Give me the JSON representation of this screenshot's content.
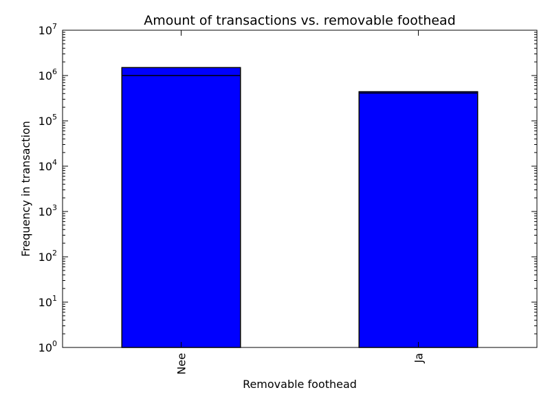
{
  "chart_data": {
    "type": "bar",
    "title": "Amount of transactions vs. removable foothead",
    "xlabel": "Removable foothead",
    "ylabel": "Frequency in transaction",
    "yscale": "log",
    "ylim": [
      1,
      10000000
    ],
    "yticks": [
      {
        "base": "10",
        "exp": "0",
        "value": 1
      },
      {
        "base": "10",
        "exp": "1",
        "value": 10
      },
      {
        "base": "10",
        "exp": "2",
        "value": 100
      },
      {
        "base": "10",
        "exp": "3",
        "value": 1000
      },
      {
        "base": "10",
        "exp": "4",
        "value": 10000
      },
      {
        "base": "10",
        "exp": "5",
        "value": 100000
      },
      {
        "base": "10",
        "exp": "6",
        "value": 1000000
      },
      {
        "base": "10",
        "exp": "7",
        "value": 10000000
      }
    ],
    "categories": [
      "Nee",
      "Ja"
    ],
    "values": [
      1500000,
      440000
    ],
    "inner_values": [
      1000000,
      410000
    ],
    "bar_color": "#0000ff",
    "grid": false
  }
}
